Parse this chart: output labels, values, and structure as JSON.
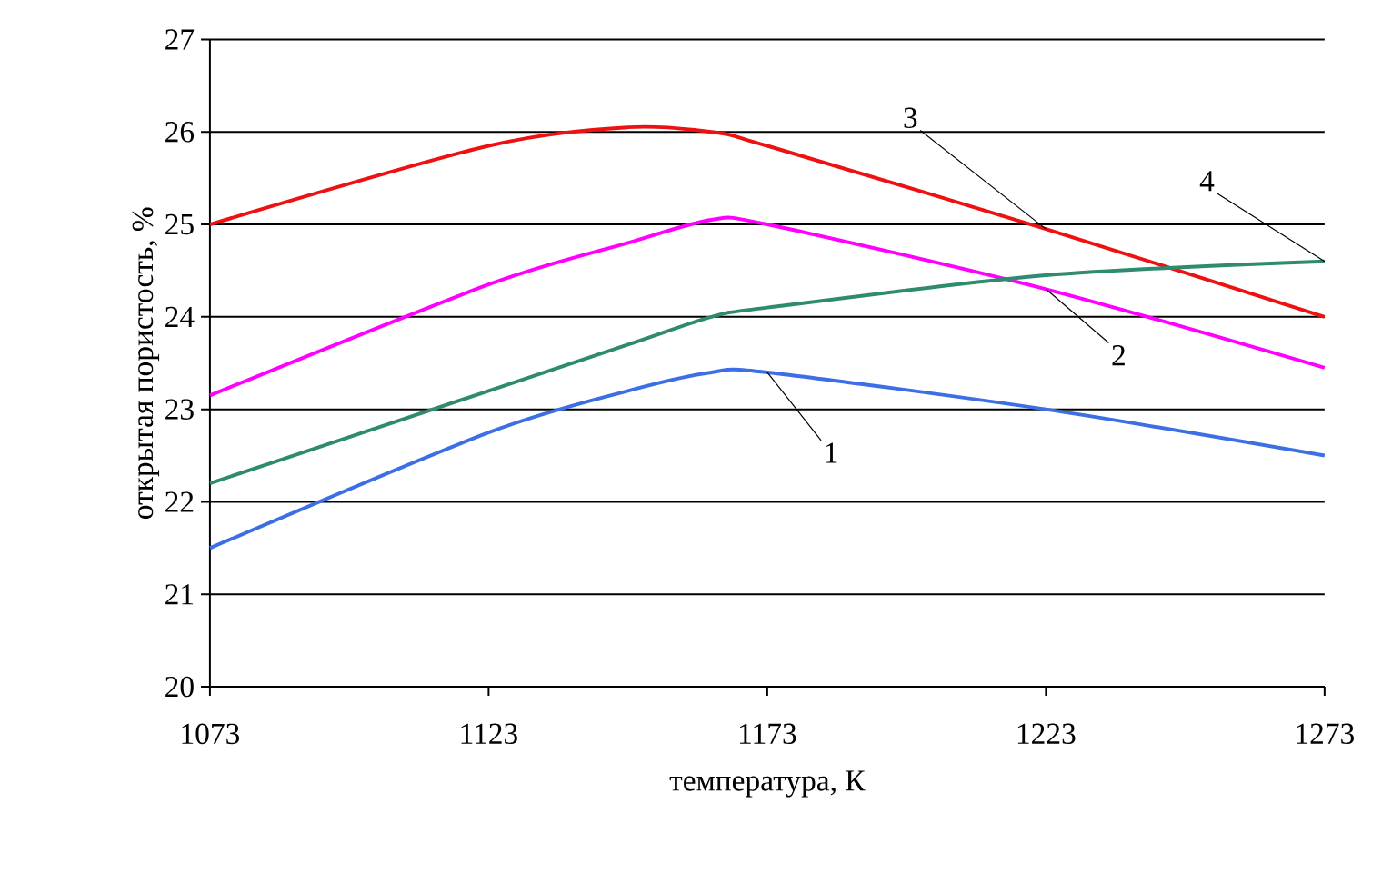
{
  "chart_data": {
    "type": "line",
    "xlabel": "температура, К",
    "ylabel": "открытая пористость, %",
    "x": [
      1073,
      1123,
      1148,
      1163,
      1173,
      1223,
      1273
    ],
    "series": [
      {
        "name": "1",
        "color": "#3c6ee6",
        "values": [
          21.5,
          22.75,
          23.2,
          23.4,
          23.4,
          23.0,
          22.5
        ]
      },
      {
        "name": "2",
        "color": "#ff00ff",
        "values": [
          23.15,
          24.35,
          24.8,
          25.05,
          25.0,
          24.3,
          23.45
        ]
      },
      {
        "name": "3",
        "color": "#ee1111",
        "values": [
          25.0,
          25.85,
          26.05,
          26.0,
          25.85,
          24.95,
          24.0
        ]
      },
      {
        "name": "4",
        "color": "#2e8b6e",
        "values": [
          22.2,
          23.2,
          23.7,
          24.0,
          24.1,
          24.45,
          24.6
        ]
      }
    ],
    "xlim": [
      1073,
      1273
    ],
    "ylim": [
      20,
      27
    ],
    "xticks": [
      1073,
      1123,
      1173,
      1223,
      1273
    ],
    "yticks": [
      20,
      21,
      22,
      23,
      24,
      25,
      26,
      27
    ],
    "grid": "y",
    "marker": "none",
    "line_style": "solid"
  }
}
